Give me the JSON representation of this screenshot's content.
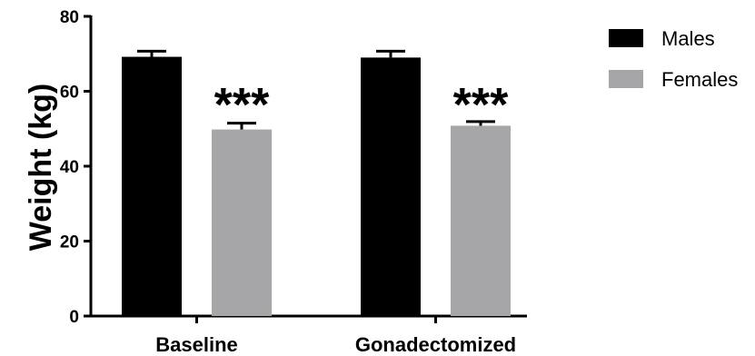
{
  "chart_data": {
    "type": "bar",
    "categories": [
      "Baseline",
      "Gonadectomized"
    ],
    "series": [
      {
        "name": "Males",
        "color": "#000000",
        "values": [
          69.2,
          69.0
        ],
        "error": [
          1.5,
          1.7
        ]
      },
      {
        "name": "Females",
        "color": "#a6a6a9",
        "values": [
          49.8,
          50.8
        ],
        "error": [
          1.7,
          1.1
        ]
      }
    ],
    "ylabel": "Weight (kg)",
    "xlabel": "",
    "ylim": [
      0,
      80
    ],
    "yticks": [
      0,
      20,
      40,
      60,
      80
    ],
    "annotations": [
      "***",
      "***"
    ],
    "legend_position": "top-right",
    "grid": false
  }
}
